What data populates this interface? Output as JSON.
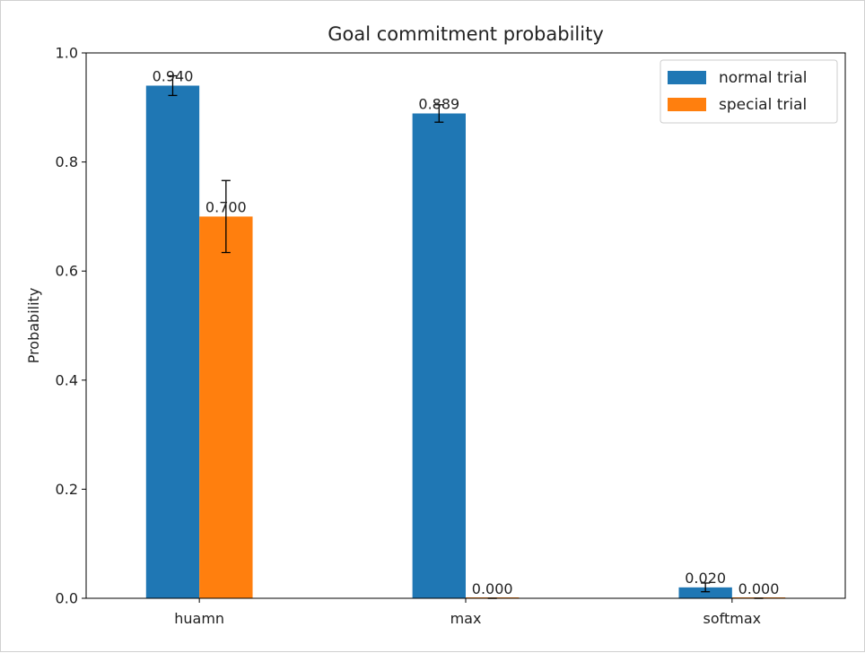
{
  "chart_data": {
    "type": "bar",
    "title": "Goal commitment probability",
    "xlabel": "",
    "ylabel": "Probability",
    "categories": [
      "huamn",
      "max",
      "softmax"
    ],
    "ylim": [
      0,
      1.0
    ],
    "yticks": [
      "0.0",
      "0.2",
      "0.4",
      "0.6",
      "0.8",
      "1.0"
    ],
    "series": [
      {
        "name": "normal trial",
        "color": "#1f77b4",
        "values": [
          0.94,
          0.889,
          0.02
        ],
        "labels": [
          "0.940",
          "0.889",
          "0.020"
        ],
        "errors": [
          0.018,
          0.016,
          0.008
        ]
      },
      {
        "name": "special trial",
        "color": "#ff7f0e",
        "values": [
          0.7,
          0.0,
          0.0
        ],
        "labels": [
          "0.700",
          "0.000",
          "0.000"
        ],
        "errors": [
          0.066,
          0.0,
          0.0
        ]
      }
    ],
    "legend_position": "top-right",
    "grid": false
  }
}
